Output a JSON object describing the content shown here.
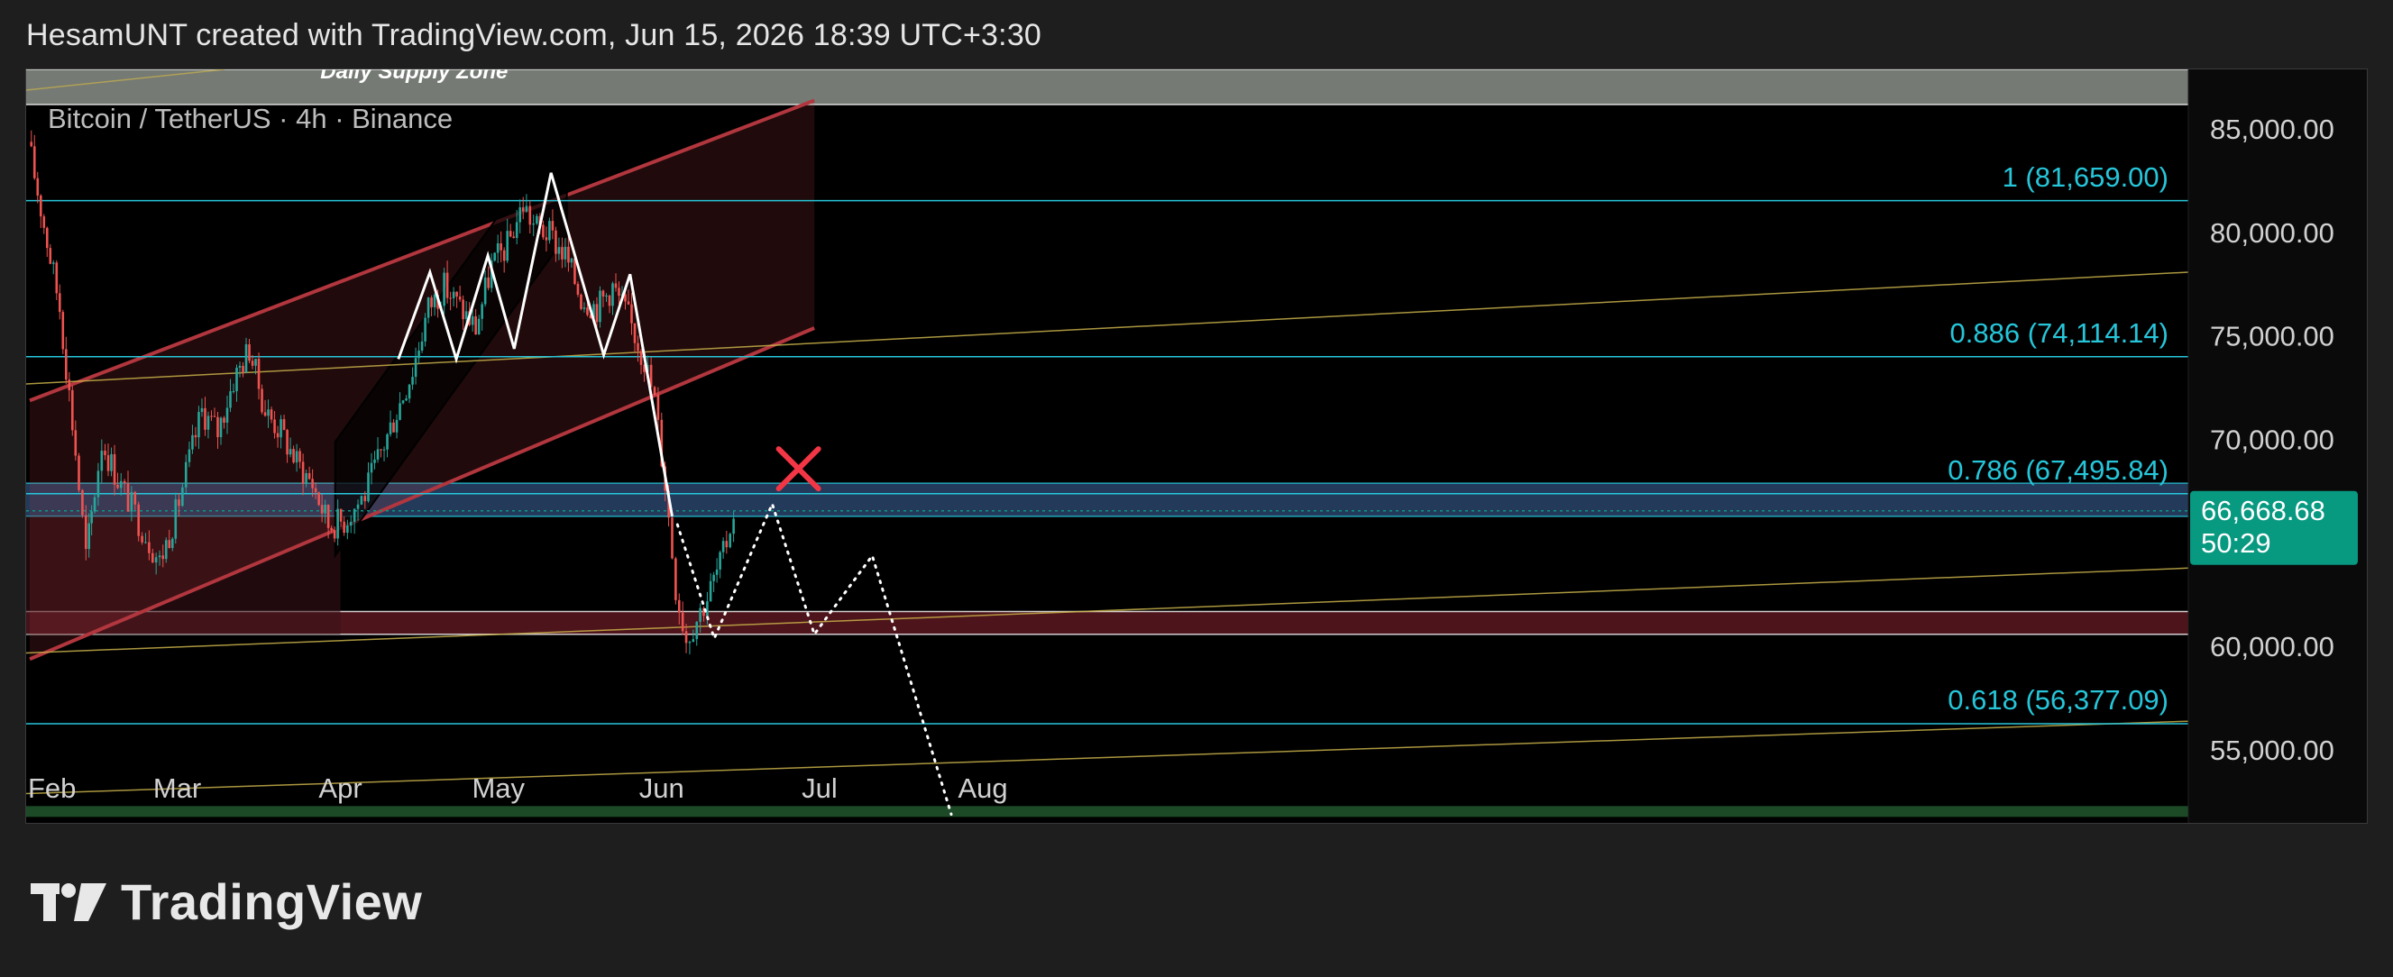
{
  "caption": "HesamUNT created with TradingView.com, Jun 15, 2026 18:39 UTC+3:30",
  "brand": {
    "name": "TradingView",
    "logo_icon": "tradingview-logo-icon"
  },
  "colors": {
    "background": "#1e1e1e",
    "chart_bg": "#000000",
    "up_candle": "#26a69a",
    "down_candle": "#ef5350",
    "fib_line": "#26c6da",
    "channel": "#b2363e",
    "price_badge": "#089981",
    "trend_line": "#c9b24a"
  },
  "chart_data": {
    "type": "candlestick",
    "symbol_label": "Bitcoin / TetherUS · 4h · Binance",
    "x_ticks": [
      "Feb",
      "Mar",
      "Apr",
      "May",
      "Jun",
      "Jul",
      "Aug"
    ],
    "y_ticks": [
      "85,000.00",
      "80,000.00",
      "75,000.00",
      "70,000.00",
      "60,000.00",
      "55,000.00"
    ],
    "ylim": [
      51500,
      88000
    ],
    "current_price": {
      "value": "66,668.68",
      "countdown": "50:29",
      "numeric": 66668.68
    },
    "fib_levels": [
      {
        "label": "1 (81,659.00)",
        "price": 81659
      },
      {
        "label": "0.886 (74,114.14)",
        "price": 74114.14
      },
      {
        "label": "0.786 (67,495.84)",
        "price": 67495.84
      },
      {
        "label": "0.618 (56,377.09)",
        "price": 56377.09
      }
    ],
    "zones": [
      {
        "label": "Daily Supply Zone",
        "top": 88000,
        "bottom": 86300
      },
      {
        "label": "",
        "top": 68000,
        "bottom": 66400
      },
      {
        "label": "",
        "top": 61800,
        "bottom": 60700
      }
    ],
    "price_path": [
      [
        "2026-02-01",
        84500
      ],
      [
        "2026-02-04",
        80500
      ],
      [
        "2026-02-07",
        76500
      ],
      [
        "2026-02-10",
        69500
      ],
      [
        "2026-02-12",
        64500
      ],
      [
        "2026-02-13",
        66500
      ],
      [
        "2026-02-15",
        70000
      ],
      [
        "2026-02-18",
        68200
      ],
      [
        "2026-02-22",
        66200
      ],
      [
        "2026-02-26",
        64200
      ],
      [
        "2026-03-01",
        66500
      ],
      [
        "2026-03-03",
        68500
      ],
      [
        "2026-03-06",
        71500
      ],
      [
        "2026-03-09",
        70500
      ],
      [
        "2026-03-12",
        73000
      ],
      [
        "2026-03-15",
        74500
      ],
      [
        "2026-03-18",
        71500
      ],
      [
        "2026-03-21",
        70500
      ],
      [
        "2026-03-24",
        69000
      ],
      [
        "2026-03-27",
        68000
      ],
      [
        "2026-03-30",
        66000
      ],
      [
        "2026-04-02",
        66200
      ],
      [
        "2026-04-06",
        67500
      ],
      [
        "2026-04-09",
        69500
      ],
      [
        "2026-04-12",
        71500
      ],
      [
        "2026-04-15",
        73500
      ],
      [
        "2026-04-18",
        76500
      ],
      [
        "2026-04-21",
        77500
      ],
      [
        "2026-04-24",
        76500
      ],
      [
        "2026-04-27",
        75500
      ],
      [
        "2026-04-30",
        78500
      ],
      [
        "2026-05-03",
        79500
      ],
      [
        "2026-05-06",
        81500
      ],
      [
        "2026-05-08",
        80500
      ],
      [
        "2026-05-11",
        80000
      ],
      [
        "2026-05-14",
        79000
      ],
      [
        "2026-05-17",
        77000
      ],
      [
        "2026-05-20",
        76500
      ],
      [
        "2026-05-23",
        77500
      ],
      [
        "2026-05-26",
        76000
      ],
      [
        "2026-05-29",
        74000
      ],
      [
        "2026-05-31",
        72000
      ],
      [
        "2026-06-02",
        68000
      ],
      [
        "2026-06-04",
        63000
      ],
      [
        "2026-06-06",
        60500
      ],
      [
        "2026-06-08",
        61500
      ],
      [
        "2026-06-10",
        62500
      ],
      [
        "2026-06-13",
        64500
      ],
      [
        "2026-06-15",
        66669
      ]
    ],
    "swing_pattern": [
      [
        "2026-04-12",
        74000
      ],
      [
        "2026-04-18",
        78200
      ],
      [
        "2026-04-23",
        74000
      ],
      [
        "2026-04-29",
        79000
      ],
      [
        "2026-05-04",
        74500
      ],
      [
        "2026-05-11",
        83000
      ],
      [
        "2026-05-21",
        74200
      ],
      [
        "2026-05-26",
        78100
      ],
      [
        "2026-06-03",
        66400
      ]
    ],
    "projection_path": [
      [
        "2026-06-04",
        66000
      ],
      [
        "2026-06-11",
        60500
      ],
      [
        "2026-06-22",
        67000
      ],
      [
        "2026-06-30",
        60700
      ],
      [
        "2026-07-11",
        64500
      ],
      [
        "2026-07-26",
        52000
      ]
    ],
    "invalid_marker": {
      "date": "2026-06-27",
      "price": 68700,
      "icon": "cross-icon"
    }
  }
}
